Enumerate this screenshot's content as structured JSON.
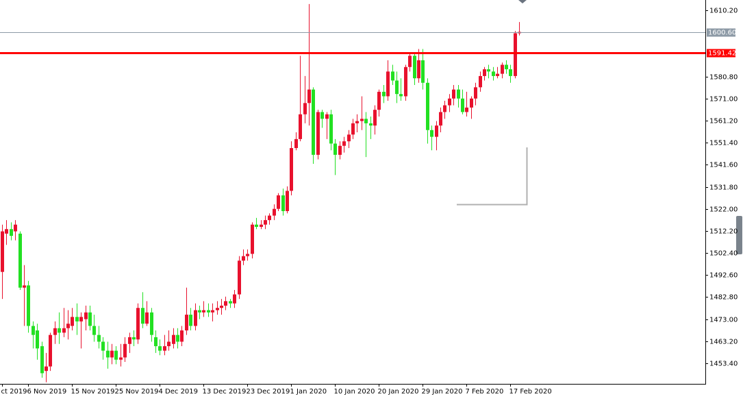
{
  "chart_data": {
    "type": "candlestick",
    "up_color": "#e8112d",
    "down_color": "#22e022",
    "categories": [
      "ct 2019",
      null,
      null,
      null,
      null,
      null,
      "6 Nov 2019",
      null,
      null,
      null,
      null,
      null,
      null,
      null,
      null,
      null,
      "15 Nov 2019",
      null,
      null,
      null,
      null,
      null,
      null,
      null,
      null,
      null,
      "25 Nov 2019",
      null,
      null,
      null,
      null,
      null,
      null,
      null,
      null,
      null,
      "4 Dec 2019",
      null,
      null,
      null,
      null,
      null,
      null,
      null,
      null,
      null,
      "13 Dec 2019",
      null,
      null,
      null,
      null,
      null,
      null,
      null,
      null,
      null,
      "23 Dec 2019",
      null,
      null,
      null,
      null,
      null,
      null,
      null,
      null,
      null,
      "1 Jan 2020",
      null,
      null,
      null,
      null,
      null,
      null,
      null,
      null,
      null,
      "10 Jan 2020",
      null,
      null,
      null,
      null,
      null,
      null,
      null,
      null,
      null,
      "20 Jan 2020",
      null,
      null,
      null,
      null,
      null,
      null,
      null,
      null,
      null,
      "29 Jan 2020",
      null,
      null,
      null,
      null,
      null,
      null,
      null,
      null,
      null,
      "7 Feb 2020",
      null,
      null,
      null,
      null,
      null,
      null,
      null,
      null,
      null,
      "17 Feb 2020",
      null,
      null
    ],
    "open": [
      1494,
      1511,
      1513,
      1512,
      1511,
      1487,
      1488,
      1470,
      1468,
      1461,
      1450,
      1452,
      1466,
      1469,
      1467,
      1469,
      1470,
      1474,
      1472,
      1473,
      1476,
      1470,
      1466,
      1463,
      1459,
      1456,
      1459,
      1455,
      1456,
      1462,
      1465,
      1464,
      1478,
      1471,
      1476,
      1465,
      1461,
      1459,
      1461,
      1462,
      1466,
      1463,
      1468,
      1475,
      1470,
      1477,
      1476,
      1477,
      1476,
      1477,
      1478,
      1479,
      1481,
      1480,
      1484,
      1499,
      1501,
      1502,
      1515,
      1514,
      1515,
      1517,
      1519,
      1522,
      1528,
      1521,
      1530,
      1549,
      1553,
      1564,
      1569,
      1575,
      1546,
      1565,
      1562,
      1564,
      1551,
      1546,
      1550,
      1552,
      1555,
      1560,
      1561,
      1562,
      1560,
      1559,
      1566,
      1574,
      1572,
      1583,
      1579,
      1573,
      1572,
      1585,
      1590,
      1580,
      1588,
      1578,
      1557,
      1554,
      1559,
      1565,
      1568,
      1571,
      1575,
      1571,
      1565,
      1567,
      1571,
      1576,
      1581,
      1584,
      1583,
      1581,
      1582,
      1586,
      1584,
      1581,
      1600
    ],
    "high": [
      1515,
      1517,
      1516,
      1517,
      1512,
      1497,
      1490,
      1472,
      1471,
      1463,
      1458,
      1467,
      1472,
      1476,
      1478,
      1477,
      1478,
      1480,
      1476,
      1479,
      1479,
      1475,
      1470,
      1465,
      1463,
      1462,
      1461,
      1462,
      1465,
      1467,
      1468,
      1480,
      1485,
      1481,
      1478,
      1468,
      1464,
      1466,
      1468,
      1469,
      1469,
      1470,
      1487,
      1478,
      1480,
      1479,
      1481,
      1480,
      1480,
      1481,
      1482,
      1483,
      1482,
      1486,
      1501,
      1504,
      1504,
      1516,
      1518,
      1517,
      1519,
      1520,
      1524,
      1529,
      1531,
      1532,
      1552,
      1556,
      1590,
      1581,
      1613,
      1576,
      1566,
      1566,
      1565,
      1566,
      1553,
      1552,
      1554,
      1557,
      1562,
      1564,
      1572,
      1565,
      1563,
      1568,
      1575,
      1577,
      1588,
      1586,
      1583,
      1580,
      1586,
      1591,
      1591,
      1593,
      1593,
      1580,
      1559,
      1561,
      1567,
      1570,
      1573,
      1577,
      1577,
      1575,
      1574,
      1572,
      1578,
      1583,
      1585,
      1586,
      1585,
      1585,
      1587,
      1588,
      1586,
      1601,
      1605
    ],
    "low": [
      1482,
      1506,
      1508,
      1508,
      1486,
      1470,
      1467,
      1460,
      1455,
      1447,
      1445,
      1450,
      1462,
      1462,
      1465,
      1464,
      1468,
      1466,
      1460,
      1468,
      1468,
      1463,
      1460,
      1455,
      1451,
      1453,
      1453,
      1452,
      1454,
      1458,
      1461,
      1462,
      1469,
      1470,
      1463,
      1458,
      1457,
      1457,
      1459,
      1460,
      1460,
      1461,
      1466,
      1468,
      1468,
      1473,
      1474,
      1474,
      1472,
      1475,
      1475,
      1477,
      1478,
      1478,
      1482,
      1497,
      1499,
      1500,
      1513,
      1513,
      1513,
      1515,
      1517,
      1521,
      1519,
      1520,
      1528,
      1548,
      1552,
      1560,
      1559,
      1542,
      1544,
      1558,
      1553,
      1548,
      1537,
      1544,
      1547,
      1549,
      1553,
      1556,
      1557,
      1545,
      1553,
      1555,
      1563,
      1569,
      1570,
      1577,
      1569,
      1570,
      1570,
      1583,
      1577,
      1578,
      1575,
      1551,
      1548,
      1548,
      1556,
      1562,
      1565,
      1568,
      1567,
      1564,
      1563,
      1562,
      1568,
      1574,
      1579,
      1580,
      1579,
      1580,
      1580,
      1582,
      1578,
      1580,
      1599
    ],
    "close": [
      1512,
      1513,
      1510,
      1515,
      1487,
      1488,
      1470,
      1466,
      1460,
      1449,
      1452,
      1466,
      1469,
      1467,
      1469,
      1471,
      1474,
      1472,
      1474,
      1476,
      1470,
      1466,
      1463,
      1459,
      1456,
      1459,
      1455,
      1456,
      1462,
      1465,
      1464,
      1478,
      1471,
      1476,
      1466,
      1461,
      1459,
      1461,
      1463,
      1466,
      1463,
      1468,
      1475,
      1470,
      1477,
      1476,
      1477,
      1476,
      1477,
      1478,
      1479,
      1481,
      1480,
      1484,
      1499,
      1501,
      1502,
      1515,
      1514,
      1515,
      1517,
      1519,
      1522,
      1528,
      1521,
      1530,
      1549,
      1553,
      1564,
      1569,
      1575,
      1546,
      1565,
      1562,
      1564,
      1551,
      1546,
      1550,
      1552,
      1555,
      1560,
      1561,
      1562,
      1560,
      1559,
      1566,
      1574,
      1572,
      1583,
      1579,
      1573,
      1572,
      1585,
      1590,
      1580,
      1588,
      1578,
      1557,
      1554,
      1559,
      1565,
      1568,
      1571,
      1575,
      1571,
      1565,
      1567,
      1571,
      1576,
      1581,
      1584,
      1583,
      1581,
      1582,
      1586,
      1584,
      1581,
      1600,
      1600.6
    ],
    "ylim": [
      1444.27,
      1614.77
    ],
    "yticks": [
      {
        "value": 1610.2,
        "label": "1610.20"
      },
      {
        "value": 1580.8,
        "label": "1580.80"
      },
      {
        "value": 1571,
        "label": "1571.00"
      },
      {
        "value": 1561.2,
        "label": "1561.20"
      },
      {
        "value": 1551.4,
        "label": "1551.40"
      },
      {
        "value": 1541.6,
        "label": "1541.60"
      },
      {
        "value": 1531.8,
        "label": "1531.80"
      },
      {
        "value": 1522,
        "label": "1522.00"
      },
      {
        "value": 1512.2,
        "label": "1512.20"
      },
      {
        "value": 1502.4,
        "label": "1502.40"
      },
      {
        "value": 1492.6,
        "label": "1492.60"
      },
      {
        "value": 1482.8,
        "label": "1482.80"
      },
      {
        "value": 1473,
        "label": "1473.00"
      },
      {
        "value": 1463.2,
        "label": "1463.20"
      },
      {
        "value": 1453.4,
        "label": "1453.40"
      }
    ],
    "price_lines": [
      {
        "value": 1600.6,
        "label": "1600.60",
        "color": "#8d9aa6"
      },
      {
        "value": 1591.42,
        "label": "1591.42",
        "color": "#ff0000"
      }
    ]
  }
}
